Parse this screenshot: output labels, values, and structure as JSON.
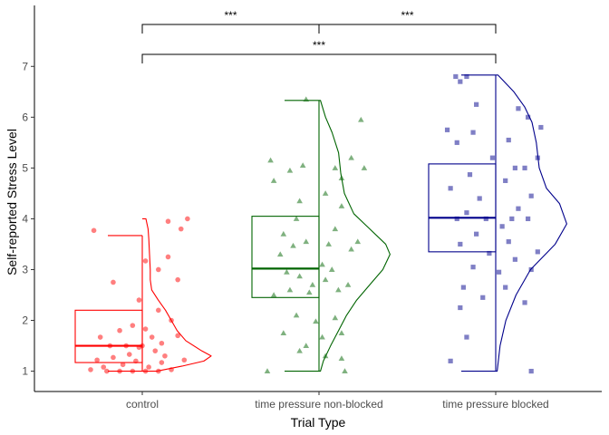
{
  "chart_data": {
    "type": "raincloud",
    "xlabel": "Trial Type",
    "ylabel": "Self-reported Stress Level",
    "ylim": [
      0.6,
      8.2
    ],
    "yticks": [
      1,
      2,
      3,
      4,
      5,
      6,
      7
    ],
    "grid": false,
    "categories": [
      "control",
      "time pressure non-blocked",
      "time pressure blocked"
    ],
    "groups": [
      {
        "category": "control",
        "color": "#ff0000",
        "marker": "circle",
        "box": {
          "q1": 1.17,
          "median": 1.5,
          "q3": 2.2,
          "whisker_low": 1.0,
          "whisker_high": 3.67
        },
        "density_peak": 1.25,
        "density": [
          [
            1.0,
            0.2
          ],
          [
            1.1,
            0.55
          ],
          [
            1.2,
            0.85
          ],
          [
            1.3,
            0.95
          ],
          [
            1.4,
            0.82
          ],
          [
            1.6,
            0.6
          ],
          [
            1.8,
            0.48
          ],
          [
            2.0,
            0.4
          ],
          [
            2.2,
            0.32
          ],
          [
            2.4,
            0.22
          ],
          [
            2.6,
            0.13
          ],
          [
            2.8,
            0.11
          ],
          [
            3.0,
            0.11
          ],
          [
            3.3,
            0.1
          ],
          [
            3.6,
            0.09
          ],
          [
            3.8,
            0.08
          ],
          [
            4.0,
            0.05
          ]
        ],
        "points": [
          [
            -0.55,
            1.0
          ],
          [
            -0.35,
            1.0
          ],
          [
            -0.15,
            1.0
          ],
          [
            0.05,
            1.0
          ],
          [
            0.25,
            1.0
          ],
          [
            -0.8,
            1.03
          ],
          [
            0.45,
            1.03
          ],
          [
            -0.6,
            1.08
          ],
          [
            0.1,
            1.08
          ],
          [
            -0.3,
            1.13
          ],
          [
            0.3,
            1.17
          ],
          [
            -0.1,
            1.2
          ],
          [
            -0.7,
            1.22
          ],
          [
            0.65,
            1.22
          ],
          [
            -0.45,
            1.27
          ],
          [
            0.35,
            1.3
          ],
          [
            -0.2,
            1.33
          ],
          [
            0.2,
            1.4
          ],
          [
            -0.05,
            1.47
          ],
          [
            -0.5,
            1.5
          ],
          [
            -0.25,
            1.5
          ],
          [
            0.0,
            1.5
          ],
          [
            0.3,
            1.55
          ],
          [
            -0.65,
            1.67
          ],
          [
            0.15,
            1.67
          ],
          [
            0.55,
            1.7
          ],
          [
            -0.35,
            1.8
          ],
          [
            0.05,
            1.83
          ],
          [
            -0.15,
            1.9
          ],
          [
            0.45,
            2.0
          ],
          [
            0.25,
            2.2
          ],
          [
            -0.05,
            2.4
          ],
          [
            -0.45,
            2.75
          ],
          [
            0.55,
            2.8
          ],
          [
            0.25,
            3.0
          ],
          [
            0.05,
            3.17
          ],
          [
            0.4,
            3.25
          ],
          [
            0.6,
            3.8
          ],
          [
            -0.75,
            3.77
          ],
          [
            0.7,
            4.0
          ],
          [
            0.4,
            3.95
          ]
        ]
      },
      {
        "category": "time pressure non-blocked",
        "color": "#006400",
        "marker": "triangle",
        "box": {
          "q1": 2.45,
          "median": 3.02,
          "q3": 4.05,
          "whisker_low": 1.0,
          "whisker_high": 6.33
        },
        "density_peak": 0.6,
        "density": [
          [
            1.0,
            0.02
          ],
          [
            1.2,
            0.06
          ],
          [
            1.5,
            0.16
          ],
          [
            1.8,
            0.27
          ],
          [
            2.1,
            0.38
          ],
          [
            2.4,
            0.52
          ],
          [
            2.7,
            0.7
          ],
          [
            3.0,
            0.88
          ],
          [
            3.3,
            0.98
          ],
          [
            3.5,
            0.92
          ],
          [
            3.8,
            0.7
          ],
          [
            4.1,
            0.48
          ],
          [
            4.5,
            0.35
          ],
          [
            4.9,
            0.3
          ],
          [
            5.3,
            0.27
          ],
          [
            5.7,
            0.18
          ],
          [
            6.0,
            0.09
          ],
          [
            6.33,
            0.02
          ]
        ],
        "points": [
          [
            -0.8,
            1.0
          ],
          [
            0.4,
            1.0
          ],
          [
            0.35,
            1.25
          ],
          [
            0.1,
            1.3
          ],
          [
            -0.3,
            1.4
          ],
          [
            -0.2,
            1.5
          ],
          [
            0.05,
            1.67
          ],
          [
            -0.55,
            1.75
          ],
          [
            0.35,
            1.75
          ],
          [
            -0.05,
            1.98
          ],
          [
            0.25,
            2.05
          ],
          [
            -0.35,
            2.1
          ],
          [
            -0.7,
            2.5
          ],
          [
            -0.15,
            2.55
          ],
          [
            0.3,
            2.6
          ],
          [
            -0.45,
            2.6
          ],
          [
            0.45,
            2.7
          ],
          [
            -0.1,
            2.7
          ],
          [
            0.1,
            2.8
          ],
          [
            -0.3,
            2.87
          ],
          [
            -0.5,
            2.95
          ],
          [
            0.2,
            3.0
          ],
          [
            0.05,
            3.1
          ],
          [
            -0.6,
            3.3
          ],
          [
            0.5,
            3.4
          ],
          [
            -0.4,
            3.47
          ],
          [
            0.15,
            3.5
          ],
          [
            -0.2,
            3.55
          ],
          [
            0.6,
            3.55
          ],
          [
            -0.55,
            3.7
          ],
          [
            0.25,
            3.8
          ],
          [
            -0.35,
            4.0
          ],
          [
            0.35,
            4.25
          ],
          [
            -0.3,
            4.35
          ],
          [
            0.1,
            4.5
          ],
          [
            -0.7,
            4.75
          ],
          [
            0.35,
            4.8
          ],
          [
            -0.45,
            4.95
          ],
          [
            0.7,
            5.0
          ],
          [
            0.25,
            5.0
          ],
          [
            -0.75,
            5.15
          ],
          [
            0.5,
            5.2
          ],
          [
            -0.25,
            5.05
          ],
          [
            0.65,
            5.95
          ],
          [
            -0.2,
            6.35
          ]
        ]
      },
      {
        "category": "time pressure blocked",
        "color": "#00008b",
        "marker": "square",
        "box": {
          "q1": 3.35,
          "median": 4.02,
          "q3": 5.08,
          "whisker_low": 1.0,
          "whisker_high": 6.83
        },
        "density_peak": 0.3,
        "density": [
          [
            1.0,
            0.02
          ],
          [
            1.5,
            0.06
          ],
          [
            2.0,
            0.14
          ],
          [
            2.5,
            0.28
          ],
          [
            3.0,
            0.48
          ],
          [
            3.5,
            0.82
          ],
          [
            3.9,
            0.98
          ],
          [
            4.3,
            0.88
          ],
          [
            4.6,
            0.7
          ],
          [
            5.0,
            0.6
          ],
          [
            5.5,
            0.56
          ],
          [
            5.9,
            0.5
          ],
          [
            6.2,
            0.4
          ],
          [
            6.5,
            0.25
          ],
          [
            6.83,
            0.03
          ]
        ],
        "points": [
          [
            -0.7,
            1.2
          ],
          [
            0.55,
            1.0
          ],
          [
            -0.45,
            1.67
          ],
          [
            -0.55,
            2.25
          ],
          [
            0.45,
            2.35
          ],
          [
            -0.2,
            2.45
          ],
          [
            0.15,
            2.65
          ],
          [
            -0.5,
            2.65
          ],
          [
            0.05,
            2.95
          ],
          [
            0.55,
            3.0
          ],
          [
            -0.35,
            3.05
          ],
          [
            0.3,
            3.2
          ],
          [
            -0.1,
            3.32
          ],
          [
            0.65,
            3.35
          ],
          [
            -0.55,
            3.5
          ],
          [
            0.2,
            3.55
          ],
          [
            -0.3,
            3.7
          ],
          [
            0.1,
            3.85
          ],
          [
            -0.6,
            4.0
          ],
          [
            -0.15,
            4.0
          ],
          [
            0.25,
            4.0
          ],
          [
            0.5,
            4.0
          ],
          [
            -0.45,
            4.12
          ],
          [
            0.35,
            4.2
          ],
          [
            -0.25,
            4.4
          ],
          [
            0.55,
            4.45
          ],
          [
            -0.7,
            4.6
          ],
          [
            0.15,
            4.75
          ],
          [
            -0.4,
            4.87
          ],
          [
            0.3,
            5.0
          ],
          [
            0.45,
            5.0
          ],
          [
            -0.05,
            5.2
          ],
          [
            0.65,
            5.2
          ],
          [
            -0.6,
            5.5
          ],
          [
            0.2,
            5.55
          ],
          [
            -0.35,
            5.7
          ],
          [
            0.7,
            5.8
          ],
          [
            -0.75,
            5.75
          ],
          [
            0.5,
            6.0
          ],
          [
            0.35,
            6.17
          ],
          [
            -0.55,
            6.7
          ],
          [
            -0.45,
            6.8
          ],
          [
            -0.3,
            6.25
          ],
          [
            -0.62,
            6.8
          ]
        ]
      }
    ],
    "comparisons": [
      {
        "from": "control",
        "to": "time pressure non-blocked",
        "label": "***",
        "tier": 2
      },
      {
        "from": "time pressure non-blocked",
        "to": "time pressure blocked",
        "label": "***",
        "tier": 2
      },
      {
        "from": "control",
        "to": "time pressure blocked",
        "label": "***",
        "tier": 1
      }
    ]
  }
}
